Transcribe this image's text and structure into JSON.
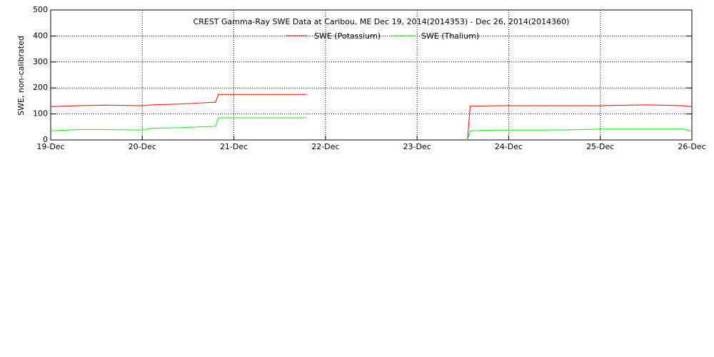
{
  "chart_data": {
    "type": "line",
    "title": "CREST Gamma-Ray SWE Data at Caribou, ME   Dec 19, 2014(2014353) - Dec 26, 2014(2014360)",
    "y_label": "SWE, non-calibrated",
    "x": [
      19.0,
      19.3,
      19.6,
      20.0,
      20.1,
      20.4,
      20.6,
      20.8,
      20.83,
      21.79,
      22.5,
      23.55,
      23.58,
      23.9,
      24.5,
      24.8,
      25.0,
      25.5,
      25.9,
      26.0
    ],
    "series": [
      {
        "name": "SWE (Potassium)",
        "color": "#ff0000",
        "values": [
          128,
          132,
          134,
          132,
          135,
          138,
          142,
          145,
          175,
          175,
          null,
          0,
          130,
          132,
          132,
          132,
          132,
          135,
          132,
          128
        ]
      },
      {
        "name": "SWE (Thalium)",
        "color": "#00ff00",
        "values": [
          35,
          40,
          40,
          38,
          45,
          47,
          50,
          52,
          85,
          85,
          null,
          0,
          35,
          38,
          38,
          40,
          42,
          42,
          42,
          33
        ]
      }
    ],
    "xlim": [
      19,
      26
    ],
    "xticks": [
      {
        "value": 19,
        "label": "19-Dec"
      },
      {
        "value": 20,
        "label": "20-Dec"
      },
      {
        "value": 21,
        "label": "21-Dec"
      },
      {
        "value": 22,
        "label": "22-Dec"
      },
      {
        "value": 23,
        "label": "23-Dec"
      },
      {
        "value": 24,
        "label": "24-Dec"
      },
      {
        "value": 25,
        "label": "25-Dec"
      },
      {
        "value": 26,
        "label": "26-Dec"
      }
    ],
    "ylim": [
      0,
      500
    ],
    "yticks": [
      0,
      100,
      200,
      300,
      400,
      500
    ],
    "grid": true
  }
}
